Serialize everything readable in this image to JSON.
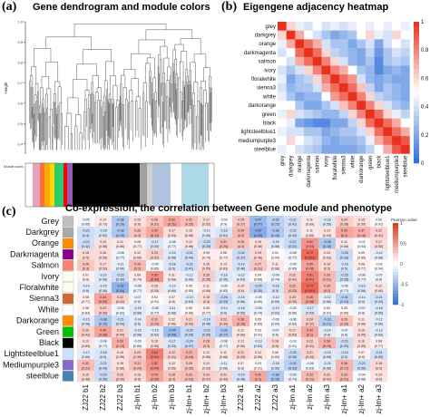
{
  "panels": {
    "a": {
      "letter": "(a)",
      "title": "Gene dendrogram and module colors",
      "ylabel": "Height",
      "xlabel": "Module colors",
      "yticks": [
        "1.0",
        "0.9",
        "0.8",
        "0.7",
        "0.6",
        "0.5",
        "0.4"
      ]
    },
    "b": {
      "letter": "(b)",
      "title": "Eigengene adjacency heatmap"
    },
    "c": {
      "letter": "(c)",
      "title": "Co-expression, the correlation between Gene module and phenotype",
      "legend_title": "Pearson value"
    }
  },
  "colors": {
    "low": "#2b6dd8",
    "mid": "#ffffff",
    "high": "#e8301c"
  },
  "chart_data": [
    {
      "type": "dendrogram",
      "name": "gene-dendrogram",
      "ylabel": "Height",
      "ylim": [
        0.35,
        1.0
      ],
      "yticks": [
        1.0,
        0.9,
        0.8,
        0.7,
        0.6,
        0.5,
        0.4
      ],
      "module_color_bar": [
        "#ffffff",
        "#ffffff",
        "#e6a2bc",
        "#ff6f3c",
        "#ffaa00",
        "#ffd700",
        "#2ecc71",
        "#ff0000",
        "#9b59b6",
        "#000000",
        "#000000",
        "#000000",
        "#a0a0a0",
        "#d0d0d0",
        "#b0c4de",
        "#ffffff",
        "#add8e6",
        "#ffffff"
      ]
    },
    {
      "type": "heatmap",
      "name": "eigengene-adjacency",
      "categories": [
        "grey",
        "darkgrey",
        "orange",
        "darkmagenta",
        "salmon",
        "ivory",
        "floralwhite",
        "sienna3",
        "white",
        "darkorange",
        "green",
        "black",
        "lightsteelblue1",
        "mediumpurple3",
        "steelblue"
      ],
      "colorbar_ticks": [
        1,
        0.8,
        0.6,
        0.4,
        0.2,
        0
      ],
      "zlim": [
        0,
        1
      ],
      "values": [
        [
          1.0,
          0.6,
          0.45,
          0.4,
          0.5,
          0.4,
          0.45,
          0.4,
          0.45,
          0.5,
          0.45,
          0.5,
          0.45,
          0.5,
          0.45
        ],
        [
          0.6,
          1.0,
          0.7,
          0.5,
          0.4,
          0.3,
          0.2,
          0.25,
          0.3,
          0.5,
          0.6,
          0.45,
          0.4,
          0.6,
          0.5
        ],
        [
          0.45,
          0.7,
          1.0,
          0.85,
          0.7,
          0.4,
          0.3,
          0.3,
          0.2,
          0.3,
          0.4,
          0.2,
          0.4,
          0.5,
          0.4
        ],
        [
          0.4,
          0.5,
          0.85,
          1.0,
          0.85,
          0.6,
          0.35,
          0.3,
          0.25,
          0.2,
          0.35,
          0.15,
          0.3,
          0.4,
          0.35
        ],
        [
          0.5,
          0.4,
          0.7,
          0.85,
          1.0,
          0.8,
          0.6,
          0.4,
          0.25,
          0.2,
          0.3,
          0.1,
          0.3,
          0.35,
          0.3
        ],
        [
          0.4,
          0.3,
          0.4,
          0.6,
          0.8,
          1.0,
          0.8,
          0.7,
          0.5,
          0.3,
          0.25,
          0.1,
          0.2,
          0.25,
          0.2
        ],
        [
          0.45,
          0.2,
          0.3,
          0.35,
          0.6,
          0.8,
          1.0,
          0.85,
          0.75,
          0.4,
          0.25,
          0.2,
          0.25,
          0.2,
          0.2
        ],
        [
          0.4,
          0.25,
          0.3,
          0.3,
          0.4,
          0.7,
          0.85,
          1.0,
          0.85,
          0.65,
          0.35,
          0.2,
          0.3,
          0.25,
          0.2
        ],
        [
          0.45,
          0.3,
          0.2,
          0.25,
          0.25,
          0.5,
          0.75,
          0.85,
          1.0,
          0.8,
          0.6,
          0.35,
          0.3,
          0.25,
          0.2
        ],
        [
          0.5,
          0.5,
          0.3,
          0.2,
          0.2,
          0.3,
          0.4,
          0.65,
          0.8,
          1.0,
          0.8,
          0.6,
          0.4,
          0.3,
          0.25
        ],
        [
          0.45,
          0.6,
          0.4,
          0.35,
          0.3,
          0.25,
          0.25,
          0.35,
          0.6,
          0.8,
          1.0,
          0.85,
          0.6,
          0.45,
          0.35
        ],
        [
          0.5,
          0.45,
          0.2,
          0.15,
          0.1,
          0.1,
          0.2,
          0.2,
          0.35,
          0.6,
          0.85,
          1.0,
          0.85,
          0.7,
          0.5
        ],
        [
          0.45,
          0.4,
          0.4,
          0.3,
          0.3,
          0.2,
          0.25,
          0.3,
          0.3,
          0.4,
          0.6,
          0.85,
          1.0,
          0.85,
          0.7
        ],
        [
          0.5,
          0.6,
          0.5,
          0.4,
          0.35,
          0.25,
          0.2,
          0.25,
          0.25,
          0.3,
          0.45,
          0.7,
          0.85,
          1.0,
          0.9
        ],
        [
          0.45,
          0.5,
          0.4,
          0.35,
          0.3,
          0.2,
          0.2,
          0.2,
          0.2,
          0.25,
          0.35,
          0.5,
          0.7,
          0.9,
          1.0
        ]
      ]
    },
    {
      "type": "heatmap",
      "name": "module-trait-correlation",
      "rows": [
        "Grey",
        "Darkgrey",
        "Orange",
        "Darkmagenta",
        "Salmon",
        "Ivory",
        "Floralwhite",
        "Sienna3",
        "White",
        "Darkorange",
        "Green",
        "Black",
        "Lightsteelblue1",
        "Mediumpurple3",
        "steelblue"
      ],
      "row_colors": [
        "#bebebe",
        "#a9a9a9",
        "#ff8c00",
        "#8b008b",
        "#fa8072",
        "#fffff0",
        "#fffaf0",
        "#cd6839",
        "#ffffff",
        "#ff8c00",
        "#00c000",
        "#000000",
        "#cae1ff",
        "#8968cd",
        "#4682b4"
      ],
      "columns": [
        "ZJ22 b1",
        "ZJ22 b2",
        "ZJ22 b3",
        "zj-lm b1",
        "zj-lm b2",
        "zj-lm b3",
        "zj-lm+ b1",
        "zj-lm+ b2",
        "zj-lm+ b3",
        "ZJ22 a1",
        "ZJ22 a2",
        "ZJ22 a3",
        "zj-lm a1",
        "zj-lm a2",
        "zj-lm a3",
        "zj-lm+ a1",
        "zj-lm+ a2",
        "zj-lm+ a3"
      ],
      "colorbar_ticks": [
        1,
        0.5,
        0,
        -0.5,
        -1
      ],
      "zlim": [
        -1,
        1
      ],
      "values": [
        [
          -0.05,
          0.1,
          -0.38,
          0.15,
          0.28,
          0.42,
          0.31,
          0.17,
          -0.03,
          0.25,
          -0.47,
          -0.32,
          -0.22,
          0.11,
          -0.16,
          0.24,
          0.15,
          0.03
        ],
        [
          -0.23,
          -0.18,
          -0.38,
          0.28,
          0.42,
          0.17,
          0.15,
          -0.12,
          -0.18,
          0.34,
          -0.57,
          -0.38,
          -0.22,
          0.11,
          0.13,
          0.43,
          0.37,
          0.22
        ],
        [
          -0.22,
          0.15,
          0.12,
          0.08,
          -0.17,
          -0.08,
          0.12,
          -0.23,
          0.31,
          0.28,
          0.15,
          -0.15,
          -0.27,
          0.51,
          -0.38,
          0.11,
          -0.02,
          0.17
        ],
        [
          0.18,
          0.16,
          -0.08,
          0.12,
          0.24,
          -0.15,
          -0.21,
          0.09,
          0.08,
          -0.24,
          0.19,
          0.02,
          -0.08,
          0.72,
          0.13,
          -0.26,
          0.05,
          -0.12
        ],
        [
          0.28,
          0.17,
          -0.11,
          0.34,
          -0.05,
          -0.18,
          -0.22,
          0.16,
          0.13,
          -0.19,
          0.27,
          0.11,
          -0.05,
          0.45,
          0.18,
          -0.18,
          0.08,
          -0.02
        ],
        [
          0.07,
          -0.15,
          -0.23,
          0.09,
          0.52,
          0.11,
          -0.12,
          0.25,
          -0.16,
          -0.13,
          0.04,
          -0.09,
          0.22,
          0.61,
          0.33,
          -0.25,
          -0.08,
          -0.07
        ],
        [
          -0.14,
          -0.15,
          -0.52,
          -0.08,
          0.16,
          -0.12,
          0.05,
          0.11,
          -0.06,
          0.14,
          -0.25,
          -0.18,
          0.32,
          0.74,
          0.34,
          -0.08,
          -0.15,
          0.12
        ],
        [
          0.08,
          0.44,
          0.22,
          -0.07,
          0.03,
          0.07,
          -0.13,
          0.18,
          -0.26,
          -0.15,
          -0.05,
          -0.12,
          0.23,
          0.45,
          -0.12,
          -0.31,
          -0.14,
          -0.21
        ],
        [
          0.06,
          0.23,
          -0.06,
          -0.15,
          -0.08,
          -0.11,
          0.05,
          0.08,
          -0.14,
          -0.16,
          -0.09,
          -0.13,
          -0.05,
          -0.17,
          0.03,
          0.05,
          -0.07,
          -0.16
        ],
        [
          -0.15,
          -0.38,
          -0.21,
          -0.14,
          0.31,
          0.12,
          0.21,
          -0.19,
          0.23,
          0.38,
          0.05,
          -0.06,
          -0.06,
          0.24,
          -0.33,
          0.29,
          0.11,
          -0.12
        ],
        [
          0.22,
          0.45,
          0.21,
          -0.15,
          -0.13,
          -0.45,
          -0.25,
          -0.25,
          -0.36,
          0.12,
          0.03,
          -0.07,
          0.17,
          0.43,
          -0.14,
          -0.07,
          0.16,
          -0.13
        ],
        [
          0.13,
          -0.08,
          0.39,
          -0.05,
          0.16,
          -0.17,
          -0.24,
          0.28,
          -0.08,
          0.12,
          -0.13,
          0.18,
          -0.03,
          0.22,
          0.38,
          -0.23,
          0.16,
          0.08
        ],
        [
          -0.12,
          -0.18,
          0.15,
          0.23,
          0.63,
          0.22,
          0.37,
          0.12,
          0.11,
          0.21,
          0.12,
          0.06,
          -0.25,
          0.21,
          -0.15,
          -0.18,
          0.07,
          -0.21
        ],
        [
          0.33,
          -0.21,
          0.15,
          0.31,
          0.52,
          0.12,
          0.25,
          0.13,
          -0.11,
          0.07,
          0.03,
          -0.16,
          -0.32,
          -0.06,
          -0.15,
          0.36,
          -0.23,
          0.18
        ],
        [
          0.19,
          -0.25,
          0.23,
          0.18,
          0.44,
          0.28,
          0.32,
          0.24,
          0.21,
          -0.19,
          0.42,
          -0.38,
          -0.09,
          0.33,
          0.22,
          0.33,
          -0.04,
          0.14
        ]
      ],
      "pvalues": [
        [
          0.85,
          0.73,
          0.16,
          0.6,
          0.31,
          0.11,
          0.25,
          0.52,
          0.9,
          0.37,
          0.07,
          0.22,
          0.41,
          0.69,
          0.55,
          0.38,
          0.59,
          0.91
        ],
        [
          0.4,
          0.52,
          0.15,
          0.3,
          0.12,
          0.53,
          0.58,
          0.66,
          0.51,
          0.2,
          0.03,
          0.15,
          0.42,
          0.68,
          0.63,
          0.1,
          0.16,
          0.41
        ],
        [
          0.42,
          0.58,
          0.66,
          0.77,
          0.53,
          0.77,
          0.66,
          0.39,
          0.25,
          0.3,
          0.58,
          0.58,
          0.31,
          0.04,
          0.15,
          0.68,
          0.94,
          0.53
        ],
        [
          0.5,
          0.55,
          0.77,
          0.66,
          0.37,
          0.58,
          0.44,
          0.74,
          0.77,
          0.37,
          0.48,
          0.94,
          0.77,
          0.002,
          0.63,
          0.33,
          0.85,
          0.66
        ],
        [
          0.3,
          0.53,
          0.68,
          0.2,
          0.85,
          0.5,
          0.41,
          0.55,
          0.63,
          0.48,
          0.31,
          0.68,
          0.85,
          0.08,
          0.5,
          0.5,
          0.77,
          0.94
        ],
        [
          0.8,
          0.58,
          0.39,
          0.74,
          0.04,
          0.68,
          0.66,
          0.35,
          0.55,
          0.63,
          0.88,
          0.74,
          0.41,
          0.01,
          0.21,
          0.35,
          0.77,
          0.8
        ],
        [
          0.6,
          0.58,
          0.04,
          0.77,
          0.55,
          0.66,
          0.85,
          0.68,
          0.83,
          0.6,
          0.35,
          0.5,
          0.23,
          0.001,
          0.2,
          0.77,
          0.58,
          0.66
        ],
        [
          0.77,
          0.09,
          0.41,
          0.8,
          0.91,
          0.8,
          0.63,
          0.5,
          0.33,
          0.58,
          0.85,
          0.66,
          0.39,
          0.08,
          0.66,
          0.24,
          0.6,
          0.43
        ],
        [
          0.83,
          0.39,
          0.83,
          0.58,
          0.77,
          0.68,
          0.85,
          0.77,
          0.6,
          0.55,
          0.74,
          0.63,
          0.85,
          0.53,
          0.91,
          0.85,
          0.8,
          0.55
        ],
        [
          0.58,
          0.15,
          0.43,
          0.6,
          0.24,
          0.66,
          0.43,
          0.48,
          0.39,
          0.15,
          0.85,
          0.83,
          0.83,
          0.37,
          0.21,
          0.28,
          0.68,
          0.66
        ],
        [
          0.41,
          0.08,
          0.43,
          0.58,
          0.63,
          0.08,
          0.35,
          0.35,
          0.17,
          0.66,
          0.91,
          0.8,
          0.53,
          0.1,
          0.6,
          0.8,
          0.55,
          0.63
        ],
        [
          0.63,
          0.77,
          0.13,
          0.85,
          0.55,
          0.53,
          0.37,
          0.3,
          0.77,
          0.66,
          0.63,
          0.5,
          0.91,
          0.41,
          0.15,
          0.39,
          0.55,
          0.77
        ],
        [
          0.66,
          0.5,
          0.58,
          0.39,
          0.01,
          0.41,
          0.16,
          0.66,
          0.68,
          0.43,
          0.66,
          0.83,
          0.35,
          0.43,
          0.58,
          0.5,
          0.8,
          0.43
        ],
        [
          0.21,
          0.43,
          0.58,
          0.24,
          0.04,
          0.66,
          0.35,
          0.63,
          0.68,
          0.8,
          0.91,
          0.55,
          0.23,
          0.83,
          0.58,
          0.17,
          0.39,
          0.5
        ],
        [
          0.48,
          0.35,
          0.39,
          0.5,
          0.09,
          0.3,
          0.23,
          0.37,
          0.43,
          0.48,
          0.1,
          0.15,
          0.74,
          0.21,
          0.41,
          0.21,
          0.88,
          0.6
        ]
      ]
    }
  ]
}
